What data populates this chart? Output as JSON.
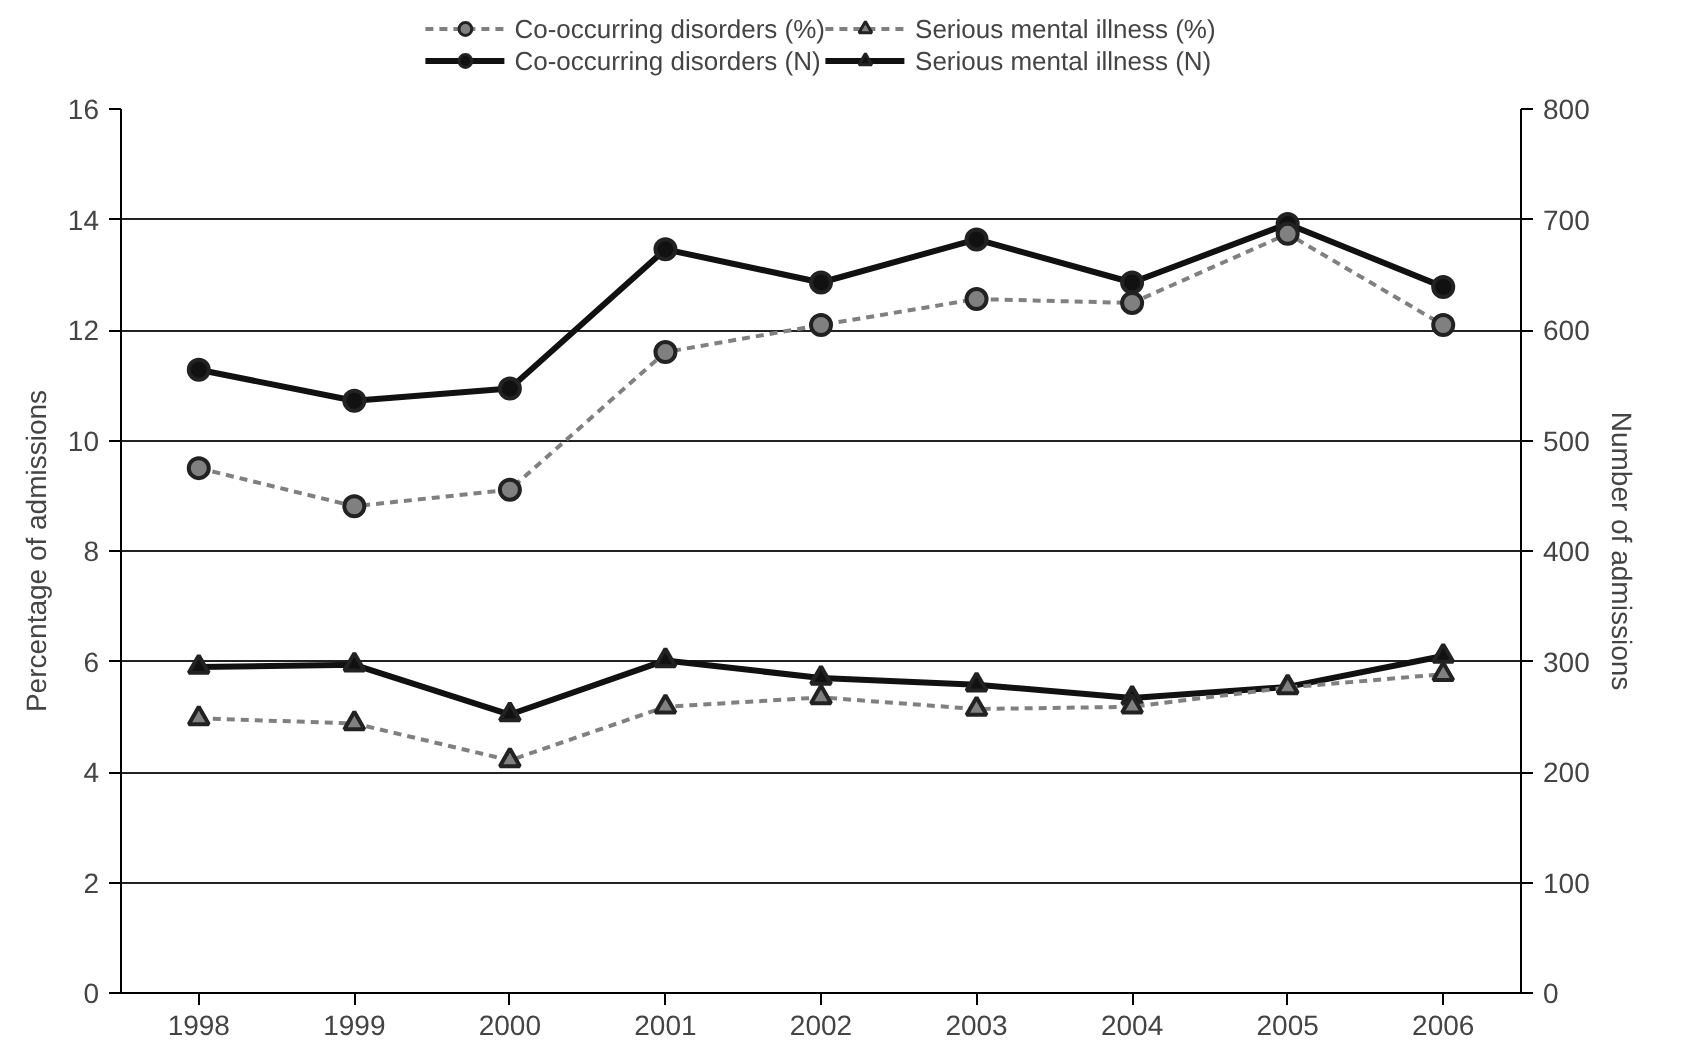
{
  "chart_data": {
    "type": "line",
    "ylabel": "Percentage of admissions",
    "y2label": "Number of admissions",
    "categories": [
      "1998",
      "1999",
      "2000",
      "2001",
      "2002",
      "2003",
      "2004",
      "2005",
      "2006"
    ],
    "ylim": [
      0,
      16
    ],
    "yticks": [
      0,
      2,
      4,
      6,
      8,
      10,
      12,
      14,
      16
    ],
    "y2lim": [
      0,
      800
    ],
    "y2ticks": [
      0,
      100,
      200,
      300,
      400,
      500,
      600,
      700,
      800
    ],
    "grid": "y",
    "legend": "top",
    "series": [
      {
        "name": "Co-occurring disorders (%)",
        "color": "#808080",
        "marker": "circle",
        "line_style": "dashed",
        "values": [
          9.5,
          8.81,
          9.11,
          11.6,
          12.09,
          12.56,
          12.49,
          13.74,
          12.09
        ]
      },
      {
        "name": "Serious mental illness (%)",
        "color": "#808080",
        "marker": "triangle",
        "line_style": "dashed",
        "values": [
          4.97,
          4.88,
          4.21,
          5.18,
          5.35,
          5.14,
          5.18,
          5.53,
          5.77
        ]
      },
      {
        "name": "Co-occurring disorders (N)",
        "color": "#111111",
        "marker": "circle",
        "line_style": "solid",
        "axis": "y2",
        "values": [
          564,
          536,
          547,
          673,
          643,
          682,
          643,
          696,
          639
        ]
      },
      {
        "name": "Serious mental illness (N)",
        "color": "#111111",
        "marker": "triangle",
        "line_style": "solid",
        "axis": "y2",
        "values": [
          295,
          297,
          252,
          301,
          285,
          279,
          267,
          277,
          305
        ]
      }
    ]
  }
}
